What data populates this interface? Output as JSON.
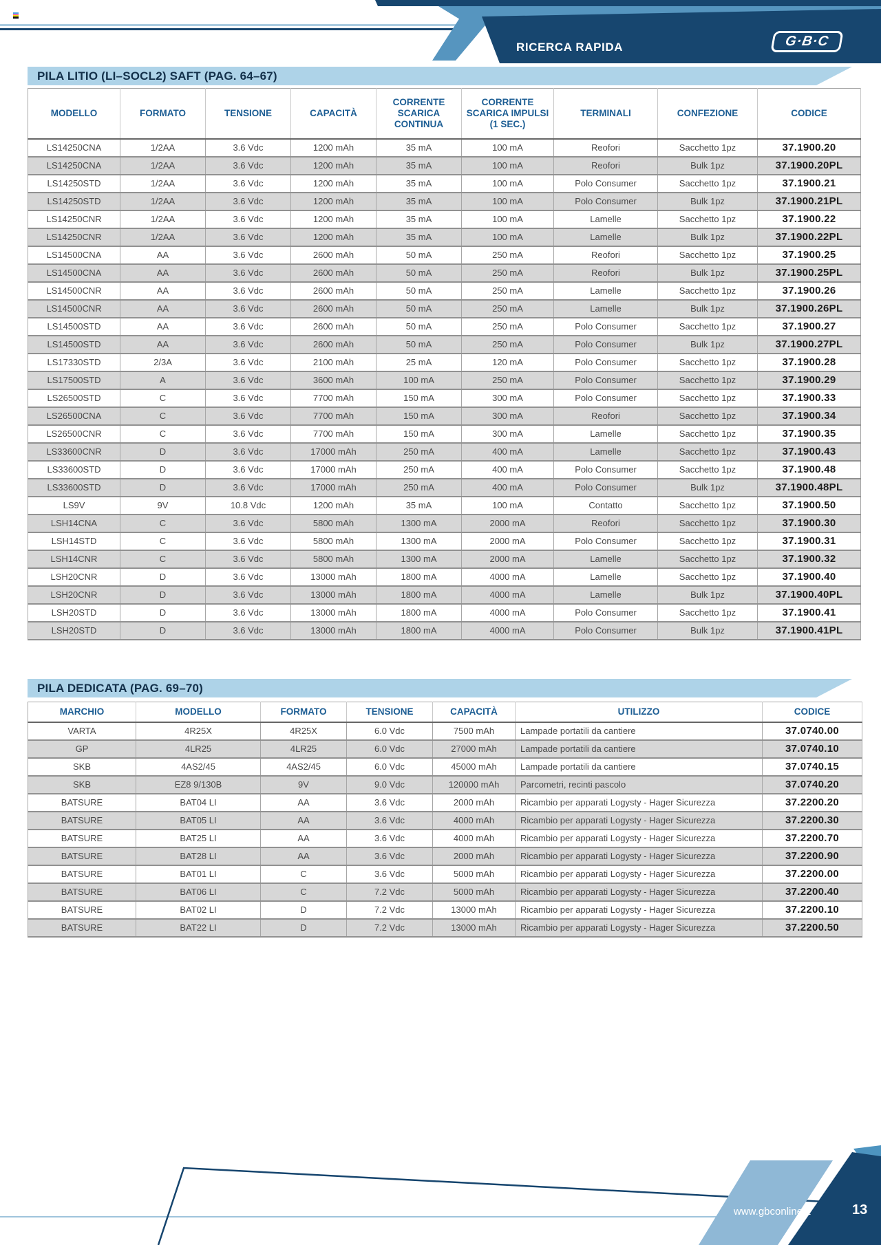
{
  "header": {
    "banner_label": "RICERCA RAPIDA",
    "logo_text": "G·B·C"
  },
  "table1": {
    "title": "PILA LITIO (LI–SOCL2) SAFT (PAG. 64–67)",
    "columns": [
      "MODELLO",
      "FORMATO",
      "TENSIONE",
      "CAPACITÀ",
      "CORRENTE SCARICA CONTINUA",
      "CORRENTE SCARICA IMPULSI (1 SEC.)",
      "TERMINALI",
      "CONFEZIONE",
      "CODICE"
    ],
    "rows": [
      [
        "LS14250CNA",
        "1/2AA",
        "3.6 Vdc",
        "1200 mAh",
        "35 mA",
        "100 mA",
        "Reofori",
        "Sacchetto 1pz",
        "37.1900.20"
      ],
      [
        "LS14250CNA",
        "1/2AA",
        "3.6 Vdc",
        "1200 mAh",
        "35 mA",
        "100 mA",
        "Reofori",
        "Bulk 1pz",
        "37.1900.20PL"
      ],
      [
        "LS14250STD",
        "1/2AA",
        "3.6 Vdc",
        "1200 mAh",
        "35 mA",
        "100 mA",
        "Polo Consumer",
        "Sacchetto 1pz",
        "37.1900.21"
      ],
      [
        "LS14250STD",
        "1/2AA",
        "3.6 Vdc",
        "1200 mAh",
        "35 mA",
        "100 mA",
        "Polo Consumer",
        "Bulk 1pz",
        "37.1900.21PL"
      ],
      [
        "LS14250CNR",
        "1/2AA",
        "3.6 Vdc",
        "1200 mAh",
        "35 mA",
        "100 mA",
        "Lamelle",
        "Sacchetto 1pz",
        "37.1900.22"
      ],
      [
        "LS14250CNR",
        "1/2AA",
        "3.6 Vdc",
        "1200 mAh",
        "35 mA",
        "100 mA",
        "Lamelle",
        "Bulk 1pz",
        "37.1900.22PL"
      ],
      [
        "LS14500CNA",
        "AA",
        "3.6 Vdc",
        "2600 mAh",
        "50 mA",
        "250 mA",
        "Reofori",
        "Sacchetto 1pz",
        "37.1900.25"
      ],
      [
        "LS14500CNA",
        "AA",
        "3.6 Vdc",
        "2600 mAh",
        "50 mA",
        "250 mA",
        "Reofori",
        "Bulk 1pz",
        "37.1900.25PL"
      ],
      [
        "LS14500CNR",
        "AA",
        "3.6 Vdc",
        "2600 mAh",
        "50 mA",
        "250 mA",
        "Lamelle",
        "Sacchetto 1pz",
        "37.1900.26"
      ],
      [
        "LS14500CNR",
        "AA",
        "3.6 Vdc",
        "2600 mAh",
        "50 mA",
        "250 mA",
        "Lamelle",
        "Bulk 1pz",
        "37.1900.26PL"
      ],
      [
        "LS14500STD",
        "AA",
        "3.6 Vdc",
        "2600 mAh",
        "50 mA",
        "250 mA",
        "Polo Consumer",
        "Sacchetto 1pz",
        "37.1900.27"
      ],
      [
        "LS14500STD",
        "AA",
        "3.6 Vdc",
        "2600 mAh",
        "50 mA",
        "250 mA",
        "Polo Consumer",
        "Bulk 1pz",
        "37.1900.27PL"
      ],
      [
        "LS17330STD",
        "2/3A",
        "3.6 Vdc",
        "2100 mAh",
        "25 mA",
        "120 mA",
        "Polo Consumer",
        "Sacchetto 1pz",
        "37.1900.28"
      ],
      [
        "LS17500STD",
        "A",
        "3.6 Vdc",
        "3600 mAh",
        "100 mA",
        "250 mA",
        "Polo Consumer",
        "Sacchetto 1pz",
        "37.1900.29"
      ],
      [
        "LS26500STD",
        "C",
        "3.6 Vdc",
        "7700 mAh",
        "150 mA",
        "300 mA",
        "Polo Consumer",
        "Sacchetto 1pz",
        "37.1900.33"
      ],
      [
        "LS26500CNA",
        "C",
        "3.6 Vdc",
        "7700 mAh",
        "150 mA",
        "300 mA",
        "Reofori",
        "Sacchetto 1pz",
        "37.1900.34"
      ],
      [
        "LS26500CNR",
        "C",
        "3.6 Vdc",
        "7700 mAh",
        "150 mA",
        "300 mA",
        "Lamelle",
        "Sacchetto 1pz",
        "37.1900.35"
      ],
      [
        "LS33600CNR",
        "D",
        "3.6 Vdc",
        "17000 mAh",
        "250 mA",
        "400 mA",
        "Lamelle",
        "Sacchetto 1pz",
        "37.1900.43"
      ],
      [
        "LS33600STD",
        "D",
        "3.6 Vdc",
        "17000 mAh",
        "250 mA",
        "400 mA",
        "Polo Consumer",
        "Sacchetto 1pz",
        "37.1900.48"
      ],
      [
        "LS33600STD",
        "D",
        "3.6 Vdc",
        "17000 mAh",
        "250 mA",
        "400 mA",
        "Polo Consumer",
        "Bulk 1pz",
        "37.1900.48PL"
      ],
      [
        "LS9V",
        "9V",
        "10.8 Vdc",
        "1200 mAh",
        "35 mA",
        "100 mA",
        "Contatto",
        "Sacchetto 1pz",
        "37.1900.50"
      ],
      [
        "LSH14CNA",
        "C",
        "3.6 Vdc",
        "5800 mAh",
        "1300 mA",
        "2000 mA",
        "Reofori",
        "Sacchetto 1pz",
        "37.1900.30"
      ],
      [
        "LSH14STD",
        "C",
        "3.6 Vdc",
        "5800 mAh",
        "1300 mA",
        "2000 mA",
        "Polo Consumer",
        "Sacchetto 1pz",
        "37.1900.31"
      ],
      [
        "LSH14CNR",
        "C",
        "3.6 Vdc",
        "5800 mAh",
        "1300 mA",
        "2000 mA",
        "Lamelle",
        "Sacchetto 1pz",
        "37.1900.32"
      ],
      [
        "LSH20CNR",
        "D",
        "3.6 Vdc",
        "13000 mAh",
        "1800 mA",
        "4000 mA",
        "Lamelle",
        "Sacchetto 1pz",
        "37.1900.40"
      ],
      [
        "LSH20CNR",
        "D",
        "3.6 Vdc",
        "13000 mAh",
        "1800 mA",
        "4000 mA",
        "Lamelle",
        "Bulk 1pz",
        "37.1900.40PL"
      ],
      [
        "LSH20STD",
        "D",
        "3.6 Vdc",
        "13000 mAh",
        "1800 mA",
        "4000 mA",
        "Polo Consumer",
        "Sacchetto 1pz",
        "37.1900.41"
      ],
      [
        "LSH20STD",
        "D",
        "3.6 Vdc",
        "13000 mAh",
        "1800 mA",
        "4000 mA",
        "Polo Consumer",
        "Bulk 1pz",
        "37.1900.41PL"
      ]
    ]
  },
  "table2": {
    "title": "PILA DEDICATA (PAG. 69–70)",
    "columns": [
      "MARCHIO",
      "MODELLO",
      "FORMATO",
      "TENSIONE",
      "CAPACITÀ",
      "UTILIZZO",
      "CODICE"
    ],
    "rows": [
      [
        "VARTA",
        "4R25X",
        "4R25X",
        "6.0 Vdc",
        "7500 mAh",
        "Lampade portatili da cantiere",
        "37.0740.00"
      ],
      [
        "GP",
        "4LR25",
        "4LR25",
        "6.0 Vdc",
        "27000 mAh",
        "Lampade portatili da cantiere",
        "37.0740.10"
      ],
      [
        "SKB",
        "4AS2/45",
        "4AS2/45",
        "6.0 Vdc",
        "45000 mAh",
        "Lampade portatili da cantiere",
        "37.0740.15"
      ],
      [
        "SKB",
        "EZ8 9/130B",
        "9V",
        "9.0 Vdc",
        "120000 mAh",
        "Parcometri, recinti pascolo",
        "37.0740.20"
      ],
      [
        "BATSURE",
        "BAT04 LI",
        "AA",
        "3.6 Vdc",
        "2000 mAh",
        "Ricambio per apparati Logysty - Hager Sicurezza",
        "37.2200.20"
      ],
      [
        "BATSURE",
        "BAT05 LI",
        "AA",
        "3.6 Vdc",
        "4000 mAh",
        "Ricambio per apparati Logysty - Hager Sicurezza",
        "37.2200.30"
      ],
      [
        "BATSURE",
        "BAT25 LI",
        "AA",
        "3.6 Vdc",
        "4000 mAh",
        "Ricambio per apparati Logysty - Hager Sicurezza",
        "37.2200.70"
      ],
      [
        "BATSURE",
        "BAT28 LI",
        "AA",
        "3.6 Vdc",
        "2000 mAh",
        "Ricambio per apparati Logysty - Hager Sicurezza",
        "37.2200.90"
      ],
      [
        "BATSURE",
        "BAT01 LI",
        "C",
        "3.6 Vdc",
        "5000 mAh",
        "Ricambio per apparati Logysty - Hager Sicurezza",
        "37.2200.00"
      ],
      [
        "BATSURE",
        "BAT06 LI",
        "C",
        "7.2 Vdc",
        "5000 mAh",
        "Ricambio per apparati Logysty - Hager Sicurezza",
        "37.2200.40"
      ],
      [
        "BATSURE",
        "BAT02 LI",
        "D",
        "7.2 Vdc",
        "13000 mAh",
        "Ricambio per apparati Logysty - Hager Sicurezza",
        "37.2200.10"
      ],
      [
        "BATSURE",
        "BAT22 LI",
        "D",
        "7.2 Vdc",
        "13000 mAh",
        "Ricambio per apparati Logysty - Hager Sicurezza",
        "37.2200.50"
      ]
    ]
  },
  "footer": {
    "website": "www.gbconline.it",
    "page_number": "13"
  },
  "colors": {
    "navy": "#17466f",
    "medium_blue": "#5695bf",
    "light_blue_bar": "#aed3e8",
    "footer_light_blue": "#8fb8d6",
    "row_alt": "#d7d7d7",
    "header_text_blue": "#1d5e94"
  }
}
